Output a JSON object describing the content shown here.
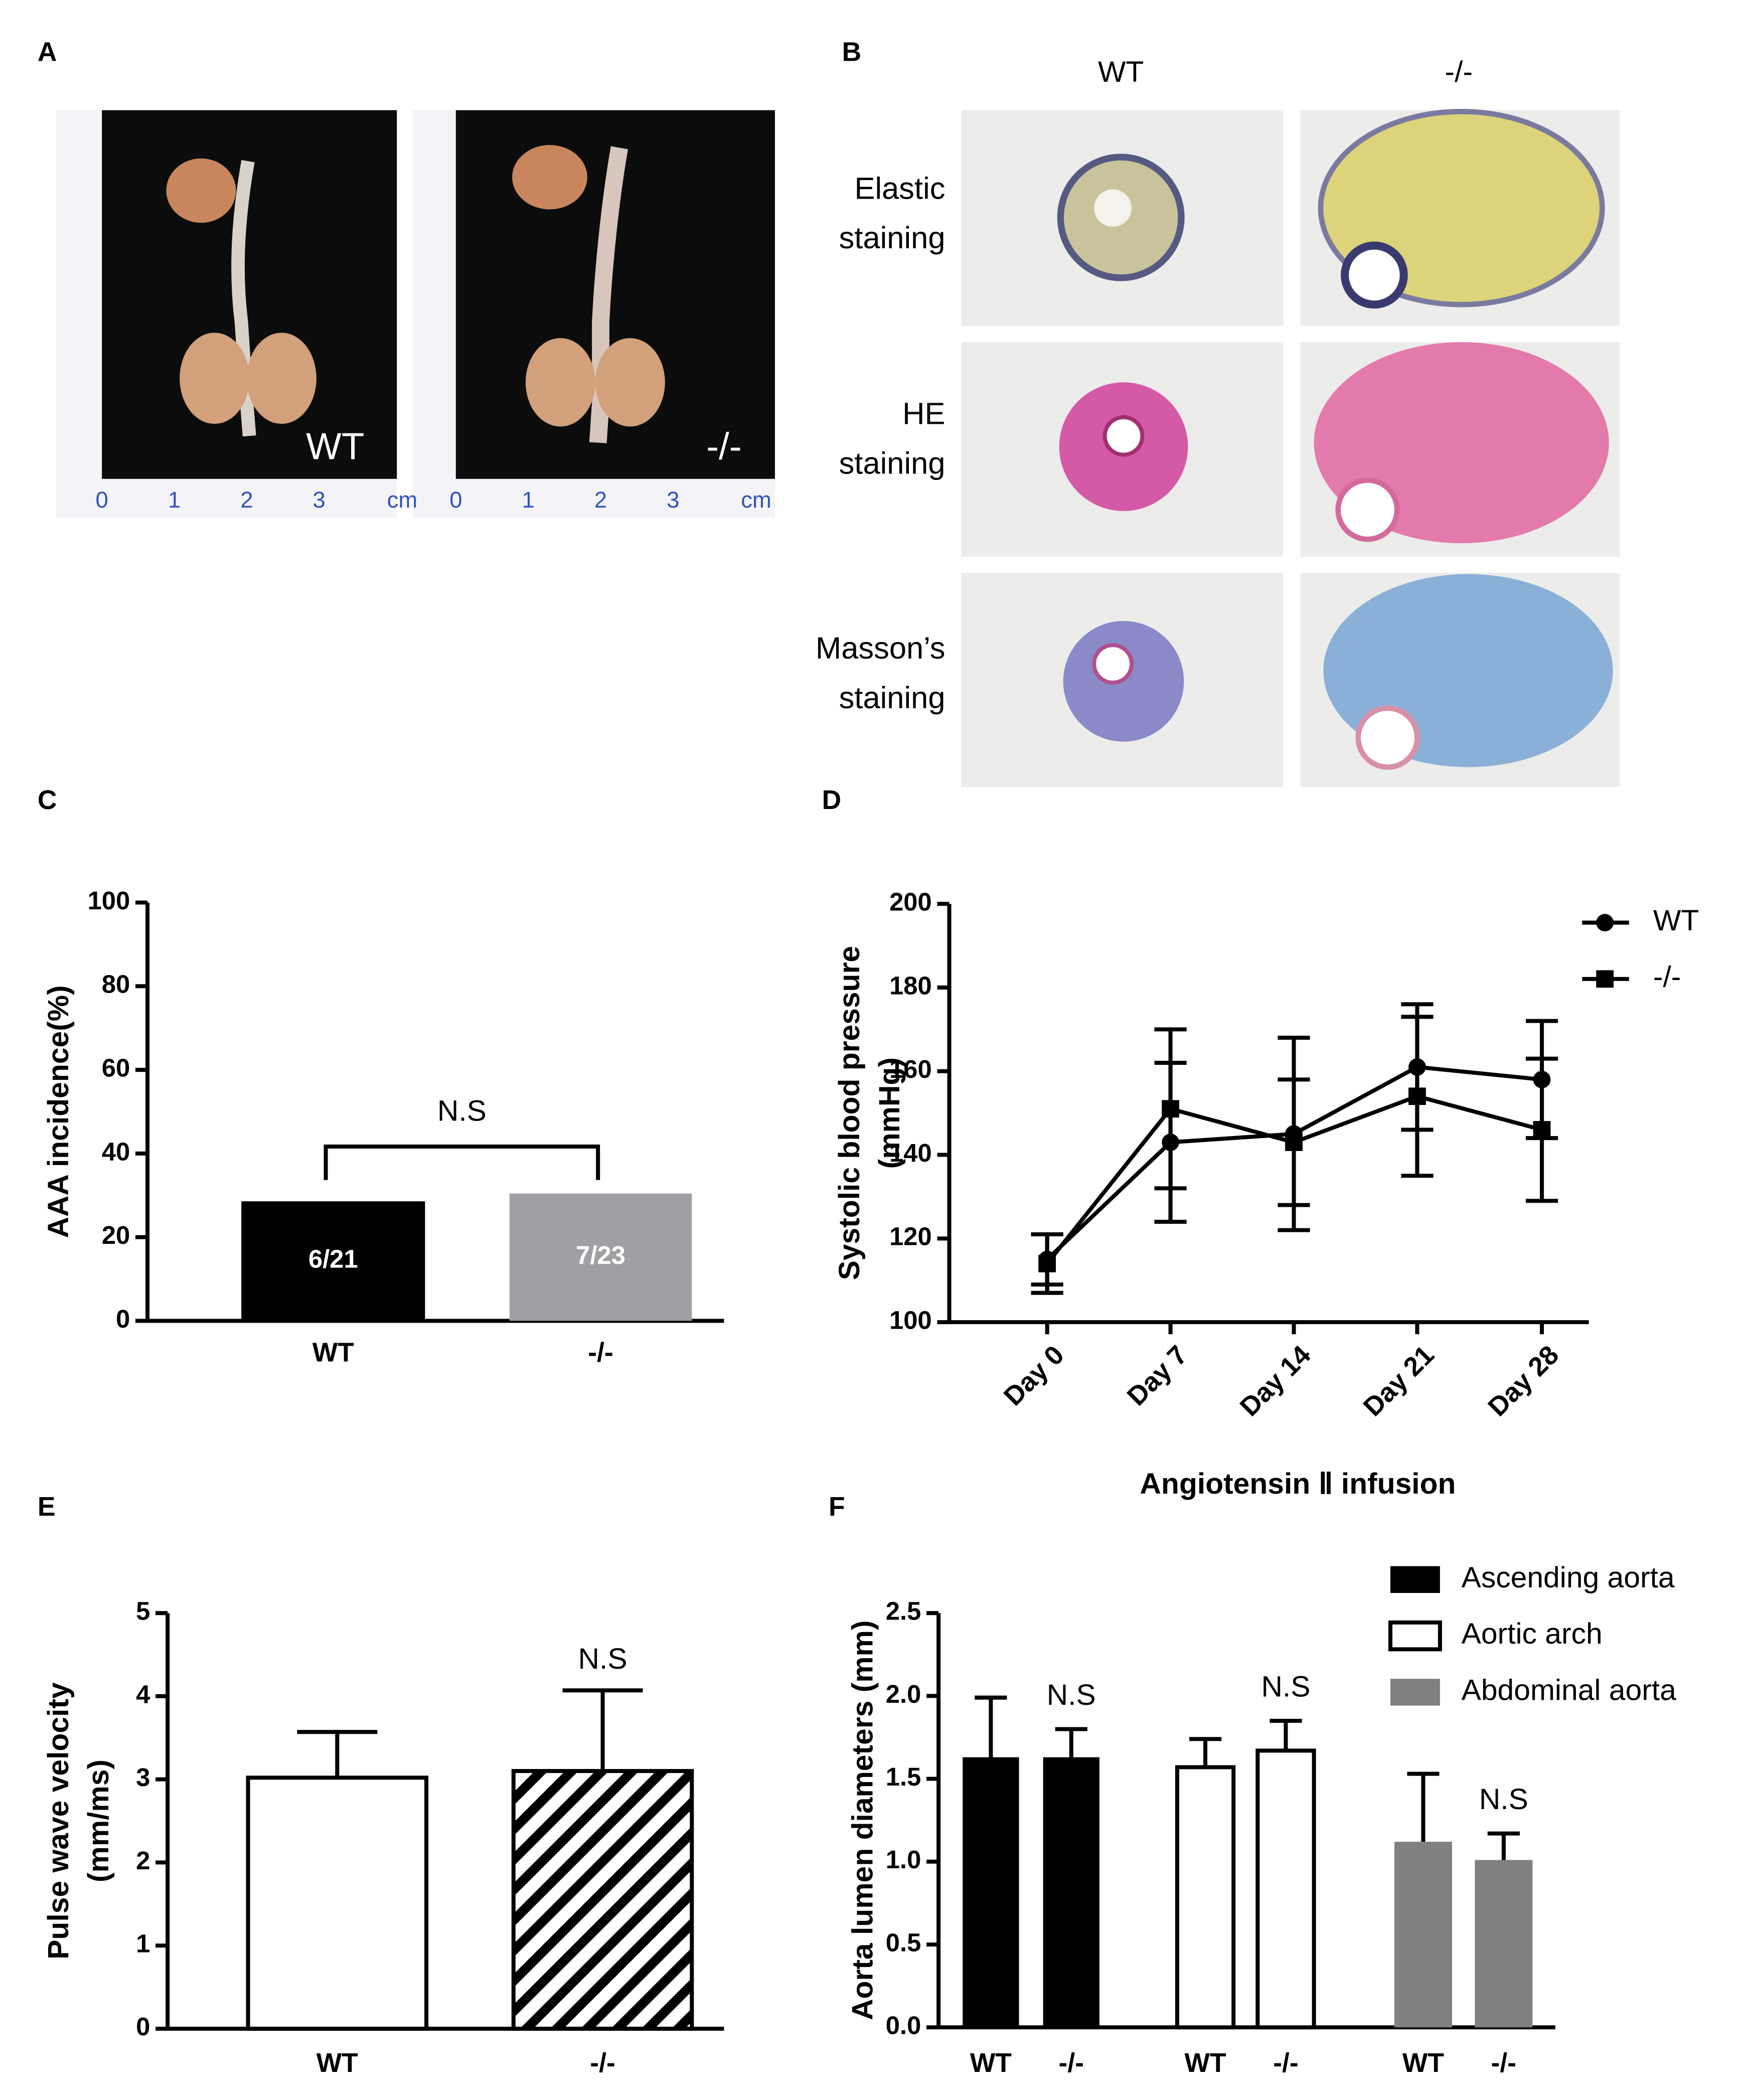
{
  "panel_labels": [
    "A",
    "B",
    "C",
    "D",
    "E",
    "F"
  ],
  "panel_a": {
    "photo_labels": [
      "WT",
      "-/-"
    ],
    "ruler_labels": [
      "0",
      "1",
      "2",
      "3",
      "cm"
    ]
  },
  "panel_b": {
    "column_headers": [
      "WT",
      "-/-"
    ],
    "row_labels": [
      [
        "Elastic",
        "staining"
      ],
      [
        "HE",
        "staining"
      ],
      [
        "Masson’s",
        "staining"
      ]
    ]
  },
  "chart_data": [
    {
      "type": "bar",
      "ylabel": [
        "AAA incidence(%)"
      ],
      "categories": [
        "WT",
        "-/-"
      ],
      "values": [
        28.57,
        30.43
      ],
      "value_labels": [
        "6/21",
        "7/23"
      ],
      "colors": [
        "#000000",
        "#a0a0a4"
      ],
      "ylim": [
        0,
        100
      ],
      "yticks": [
        0,
        20,
        40,
        60,
        80,
        100
      ],
      "annotation": "N.S"
    },
    {
      "type": "line",
      "ylabel": [
        "Systolic blood pressure",
        "(mmHg)"
      ],
      "xlabel": "Angiotensin Ⅱ infusion",
      "categories": [
        "Day 0",
        "Day 7",
        "Day 14",
        "Day 21",
        "Day 28"
      ],
      "ylim": [
        100,
        200
      ],
      "yticks": [
        100,
        120,
        140,
        160,
        180,
        200
      ],
      "legend": "top-right",
      "series": [
        {
          "name": "WT",
          "color": "#000000",
          "marker": "circle",
          "values": [
            115,
            143,
            145,
            161,
            158
          ],
          "errors": [
            6,
            19,
            23,
            15,
            14
          ]
        },
        {
          "name": "-/-",
          "color": "#000000",
          "marker": "square",
          "values": [
            114,
            151,
            143,
            154,
            146
          ],
          "errors": [
            7,
            19,
            15,
            19,
            17
          ]
        }
      ]
    },
    {
      "type": "bar",
      "ylabel": [
        "Pulse wave velocity",
        "(mm/ms)"
      ],
      "categories": [
        "WT",
        "-/-"
      ],
      "values": [
        3.02,
        3.1
      ],
      "errors": [
        0.55,
        0.97
      ],
      "colors": [
        "#ffffff",
        "#ffffff"
      ],
      "hatch": [
        false,
        true
      ],
      "ylim": [
        0,
        5
      ],
      "yticks": [
        0,
        1,
        2,
        3,
        4,
        5
      ],
      "annotation": "N.S"
    },
    {
      "type": "grouped-bar",
      "ylabel": [
        "Aorta lumen diameters (mm)"
      ],
      "categories": [
        "WT",
        "-/-"
      ],
      "ylim": [
        0,
        2.5
      ],
      "yticks": [
        {
          "value": 0,
          "label": "0.0"
        },
        0.5,
        {
          "value": 1,
          "label": "1.0"
        },
        1.5,
        {
          "value": 2,
          "label": "2.0"
        },
        2.5
      ],
      "legend": "top-right",
      "annotation": "N.S",
      "series": [
        {
          "name": "Ascending aorta",
          "color": "#000000",
          "values": [
            1.63,
            1.63
          ],
          "errors": [
            0.36,
            0.17
          ]
        },
        {
          "name": "Aortic arch",
          "color": "#ffffff",
          "values": [
            1.57,
            1.67
          ],
          "errors": [
            0.17,
            0.18
          ]
        },
        {
          "name": "Abdominal aorta",
          "color": "#808080",
          "values": [
            1.12,
            1.01
          ],
          "errors": [
            0.41,
            0.16
          ]
        }
      ]
    }
  ]
}
